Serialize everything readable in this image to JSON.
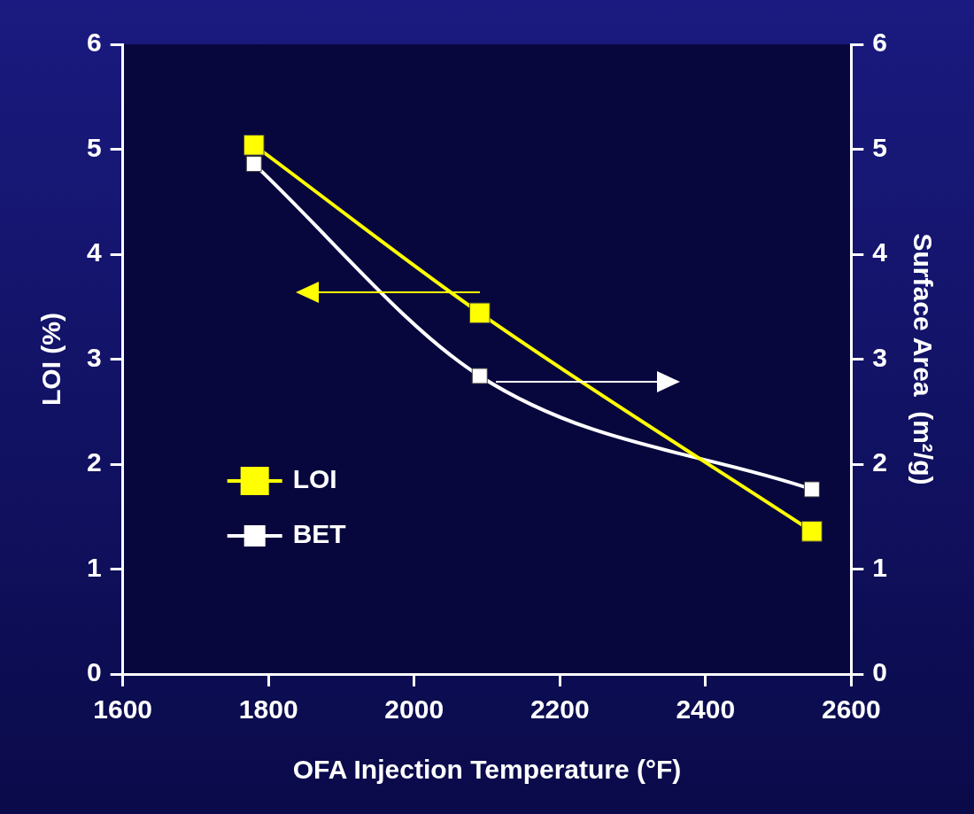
{
  "chart_data": {
    "type": "line",
    "xlabel": "OFA Injection Temperature (°F)",
    "ylabel": "LOI (%)",
    "y2label": "Surface Area  (m²/g)",
    "x": [
      1780,
      2090,
      2546
    ],
    "series": [
      {
        "name": "LOI",
        "color": "#ffff00",
        "values": [
          5.04,
          3.44,
          1.36
        ]
      },
      {
        "name": "BET",
        "color": "#ffffff",
        "values": [
          4.86,
          2.84,
          1.76
        ],
        "axis": "y2"
      }
    ],
    "xlim": [
      1600,
      2600
    ],
    "xticks": [
      1600,
      1800,
      2000,
      2200,
      2400,
      2600
    ],
    "ylim": [
      0,
      6
    ],
    "yticks": [
      0,
      1,
      2,
      3,
      4,
      5,
      6
    ],
    "y2lim": [
      0,
      6
    ],
    "y2ticks": [
      0,
      1,
      2,
      3,
      4,
      5,
      6
    ],
    "grid": false,
    "legend": "bottom left",
    "marker": "square",
    "line_style": "solid"
  }
}
